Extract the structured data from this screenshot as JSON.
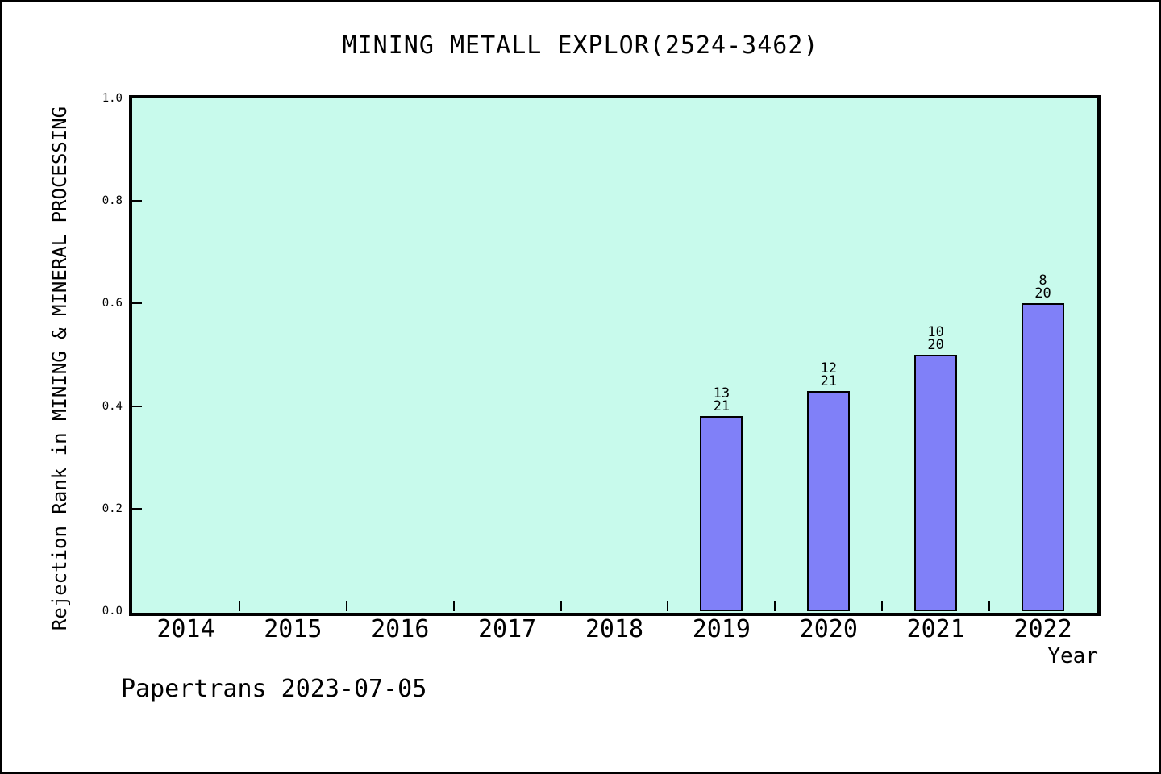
{
  "title": "MINING METALL EXPLOR(2524-3462)",
  "footer_text": "Papertrans 2023-07-05",
  "colors": {
    "page_background": "#ffffff",
    "plot_background": "#c8faec",
    "bar_fill": "#8080f8",
    "bar_edge": "#000000",
    "text": "#000000"
  },
  "chart_data": {
    "type": "bar",
    "title": "MINING METALL EXPLOR(2524-3462)",
    "xlabel": "Year",
    "ylabel": "Rejection Rank in MINING & MINERAL PROCESSING",
    "categories": [
      "2014",
      "2015",
      "2016",
      "2017",
      "2018",
      "2019",
      "2020",
      "2021",
      "2022"
    ],
    "values": [
      null,
      null,
      null,
      null,
      null,
      0.381,
      0.429,
      0.5,
      0.6
    ],
    "bar_labels": [
      null,
      null,
      null,
      null,
      null,
      {
        "numerator": "13",
        "denominator": "21"
      },
      {
        "numerator": "12",
        "denominator": "21"
      },
      {
        "numerator": "10",
        "denominator": "20"
      },
      {
        "numerator": "8",
        "denominator": "20"
      }
    ],
    "yticks": [
      "0.0",
      "0.2",
      "0.4",
      "0.6",
      "0.8",
      "1.0"
    ],
    "ylim": [
      0,
      1
    ],
    "grid": false,
    "legend": "none"
  }
}
